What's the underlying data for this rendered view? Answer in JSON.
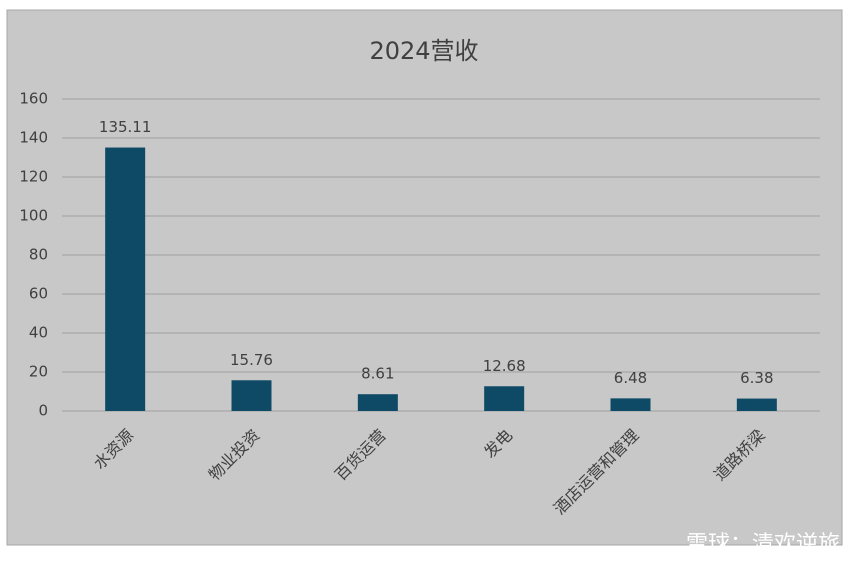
{
  "chart_data": {
    "type": "bar",
    "title": "2024营收",
    "categories": [
      "水资源",
      "物业投资",
      "百货运营",
      "发电",
      "酒店运营和管理",
      "道路桥梁"
    ],
    "values": [
      135.11,
      15.76,
      8.61,
      12.68,
      6.48,
      6.38
    ],
    "color": "#0e4a66",
    "ylim": [
      0,
      160
    ],
    "yticks": [
      0,
      20,
      40,
      60,
      80,
      100,
      120,
      140,
      160
    ],
    "grid": true,
    "data_labels": true,
    "watermark": "雪球：清欢逆旅"
  }
}
